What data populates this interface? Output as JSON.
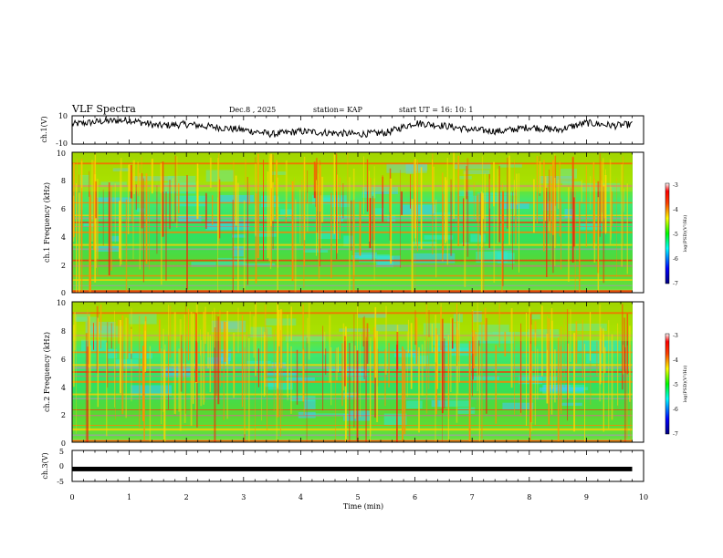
{
  "header": {
    "title": "VLF Spectra",
    "date": "Dec.8  , 2025",
    "station": "station= KAP",
    "start_ut": "start  UT  =   16: 10: 1"
  },
  "chart_data": [
    {
      "type": "line",
      "name": "ch1-waveform",
      "ylabel": "ch.1(V)",
      "ylim": [
        -10,
        10
      ],
      "yticks": [
        "10",
        "-10"
      ],
      "xlim": [
        0,
        10
      ],
      "x": [
        0,
        0.5,
        1.0,
        1.5,
        2.0,
        2.5,
        3.0,
        3.5,
        4.0,
        4.5,
        5.0,
        5.5,
        6.0,
        6.5,
        7.0,
        7.5,
        8.0,
        8.5,
        9.0,
        9.5,
        9.8
      ],
      "y": [
        4,
        6,
        7,
        3,
        4,
        2,
        0,
        -3,
        -1,
        -2,
        -3,
        -2,
        5,
        3,
        0,
        -1,
        2,
        0,
        5,
        3,
        4
      ]
    },
    {
      "type": "heatmap",
      "name": "ch1-spectrogram",
      "ylabel": "ch.1 Frequency (kHz)",
      "ylim": [
        0,
        10
      ],
      "yticks": [
        "0",
        "2",
        "4",
        "6",
        "8",
        "10"
      ],
      "xlim": [
        0,
        10
      ],
      "colorbar": {
        "label": "log(PSD)(V²/Hz)",
        "ticks": [
          "-3",
          "-4",
          "-5",
          "-6",
          "-7"
        ],
        "range": [
          -7,
          -3
        ]
      }
    },
    {
      "type": "heatmap",
      "name": "ch2-spectrogram",
      "ylabel": "ch.2 Frequency (kHz)",
      "ylim": [
        0,
        10
      ],
      "yticks": [
        "0",
        "2",
        "4",
        "6",
        "8",
        "10"
      ],
      "xlim": [
        0,
        10
      ],
      "colorbar": {
        "label": "log(PSD)(V²/Hz)",
        "ticks": [
          "-3",
          "-4",
          "-5",
          "-6",
          "-7"
        ],
        "range": [
          -7,
          -3
        ]
      }
    },
    {
      "type": "line",
      "name": "ch3-waveform",
      "ylabel": "ch.3(V)",
      "ylim": [
        -5,
        5
      ],
      "yticks": [
        "5",
        "0",
        "-5"
      ],
      "xlim": [
        0,
        10
      ],
      "x": [
        0,
        9.8
      ],
      "y": [
        -1,
        -1
      ]
    }
  ],
  "xaxis": {
    "label": "Time  (min)",
    "ticks": [
      "0",
      "1",
      "2",
      "3",
      "4",
      "5",
      "6",
      "7",
      "8",
      "9",
      "10"
    ]
  },
  "palette": [
    "#000080",
    "#0000ff",
    "#00ffff",
    "#00ff00",
    "#ffff00",
    "#ff8000",
    "#ff0000",
    "#ffffff"
  ]
}
